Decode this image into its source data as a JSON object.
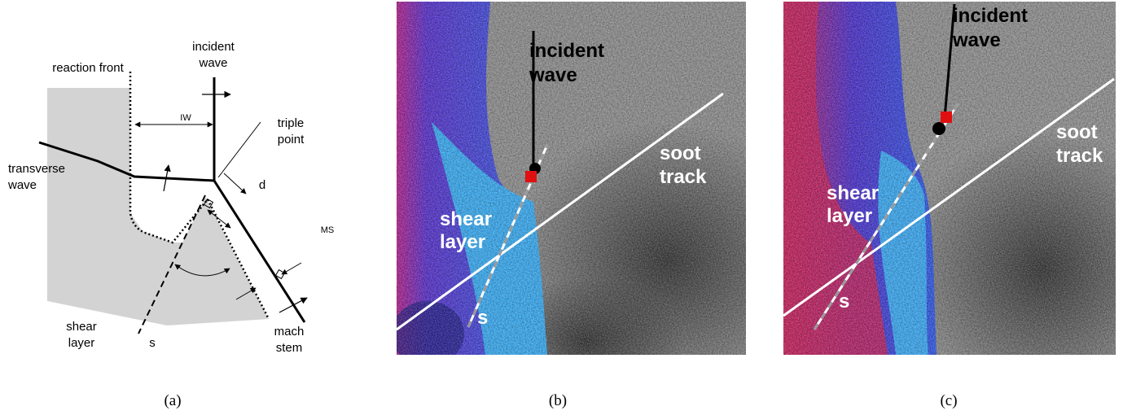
{
  "panel_a": {
    "incident_wave": [
      "incident",
      "wave"
    ],
    "reaction_front": "reaction front",
    "triple_point": [
      "triple",
      "point"
    ],
    "iw": "IW",
    "transverse_wave": [
      "transverse",
      "wave"
    ],
    "d": "d",
    "ms": "MS",
    "shear_layer": [
      "shear",
      "layer"
    ],
    "s": "s",
    "mach_stem": [
      "mach",
      "stem"
    ],
    "caption": "(a)"
  },
  "panel_b": {
    "incident_wave": [
      "incident",
      "wave"
    ],
    "soot_track": [
      "soot",
      "track"
    ],
    "shear_layer": [
      "shear",
      "layer"
    ],
    "s": "s",
    "caption": "(b)"
  },
  "panel_c": {
    "incident_wave": [
      "incident",
      "wave"
    ],
    "soot_track": [
      "soot",
      "track"
    ],
    "shear_layer": [
      "shear",
      "layer"
    ],
    "s": "s",
    "caption": "(c)"
  }
}
